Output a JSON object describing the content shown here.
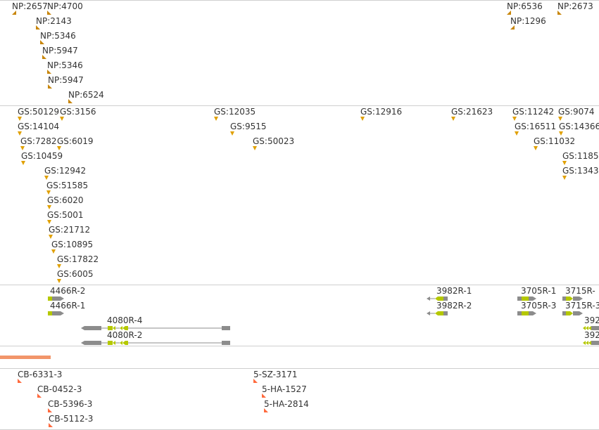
{
  "colors": {
    "np_marker": "#c8860a",
    "gs_marker": "#e0a000",
    "gene_gray": "#8c8c8c",
    "gene_lime": "#b5c800",
    "cb_marker": "#ff6a3d",
    "orange_bar": "#f2956a",
    "divider": "#cfcfcf"
  },
  "np_track": [
    {
      "label": "NP:2657",
      "dir": "left"
    },
    {
      "label": "NP:4700",
      "dir": "right"
    },
    {
      "label": "NP:2143",
      "dir": "right"
    },
    {
      "label": "NP:5346",
      "dir": "right"
    },
    {
      "label": "NP:5947",
      "dir": "right"
    },
    {
      "label": "NP:5346",
      "dir": "right"
    },
    {
      "label": "NP:5947",
      "dir": "right"
    },
    {
      "label": "NP:6524",
      "dir": "right"
    },
    {
      "label": "NP:6536",
      "dir": "left"
    },
    {
      "label": "NP:2673",
      "dir": "right"
    },
    {
      "label": "NP:1296",
      "dir": "left"
    }
  ],
  "gs_track": [
    {
      "label": "GS:50129"
    },
    {
      "label": "GS:3156"
    },
    {
      "label": "GS:14104"
    },
    {
      "label": "GS:7282"
    },
    {
      "label": "GS:6019"
    },
    {
      "label": "GS:10459"
    },
    {
      "label": "GS:12942"
    },
    {
      "label": "GS:51585"
    },
    {
      "label": "GS:6020"
    },
    {
      "label": "GS:5001"
    },
    {
      "label": "GS:21712"
    },
    {
      "label": "GS:10895"
    },
    {
      "label": "GS:17822"
    },
    {
      "label": "GS:6005"
    },
    {
      "label": "GS:12035"
    },
    {
      "label": "GS:9515"
    },
    {
      "label": "GS:50023"
    },
    {
      "label": "GS:12916"
    },
    {
      "label": "GS:21623"
    },
    {
      "label": "GS:11242"
    },
    {
      "label": "GS:9074"
    },
    {
      "label": "GS:16511"
    },
    {
      "label": "GS:14366"
    },
    {
      "label": "GS:11032"
    },
    {
      "label": "GS:1185"
    },
    {
      "label": "GS:1343"
    }
  ],
  "gene_track": [
    {
      "label": "4466R-2"
    },
    {
      "label": "4466R-1"
    },
    {
      "label": "4080R-4"
    },
    {
      "label": "4080R-2"
    },
    {
      "label": "3982R-1"
    },
    {
      "label": "3982R-2"
    },
    {
      "label": "3705R-1"
    },
    {
      "label": "3705R-3"
    },
    {
      "label": "3715R-"
    },
    {
      "label": "3715R-3"
    },
    {
      "label": "392"
    },
    {
      "label": "392"
    }
  ],
  "cb_track": [
    {
      "label": "CB-6331-3"
    },
    {
      "label": "CB-0452-3"
    },
    {
      "label": "CB-5396-3"
    },
    {
      "label": "CB-5112-3"
    },
    {
      "label": "5-SZ-3171"
    },
    {
      "label": "5-HA-1527"
    },
    {
      "label": "5-HA-2814"
    }
  ]
}
